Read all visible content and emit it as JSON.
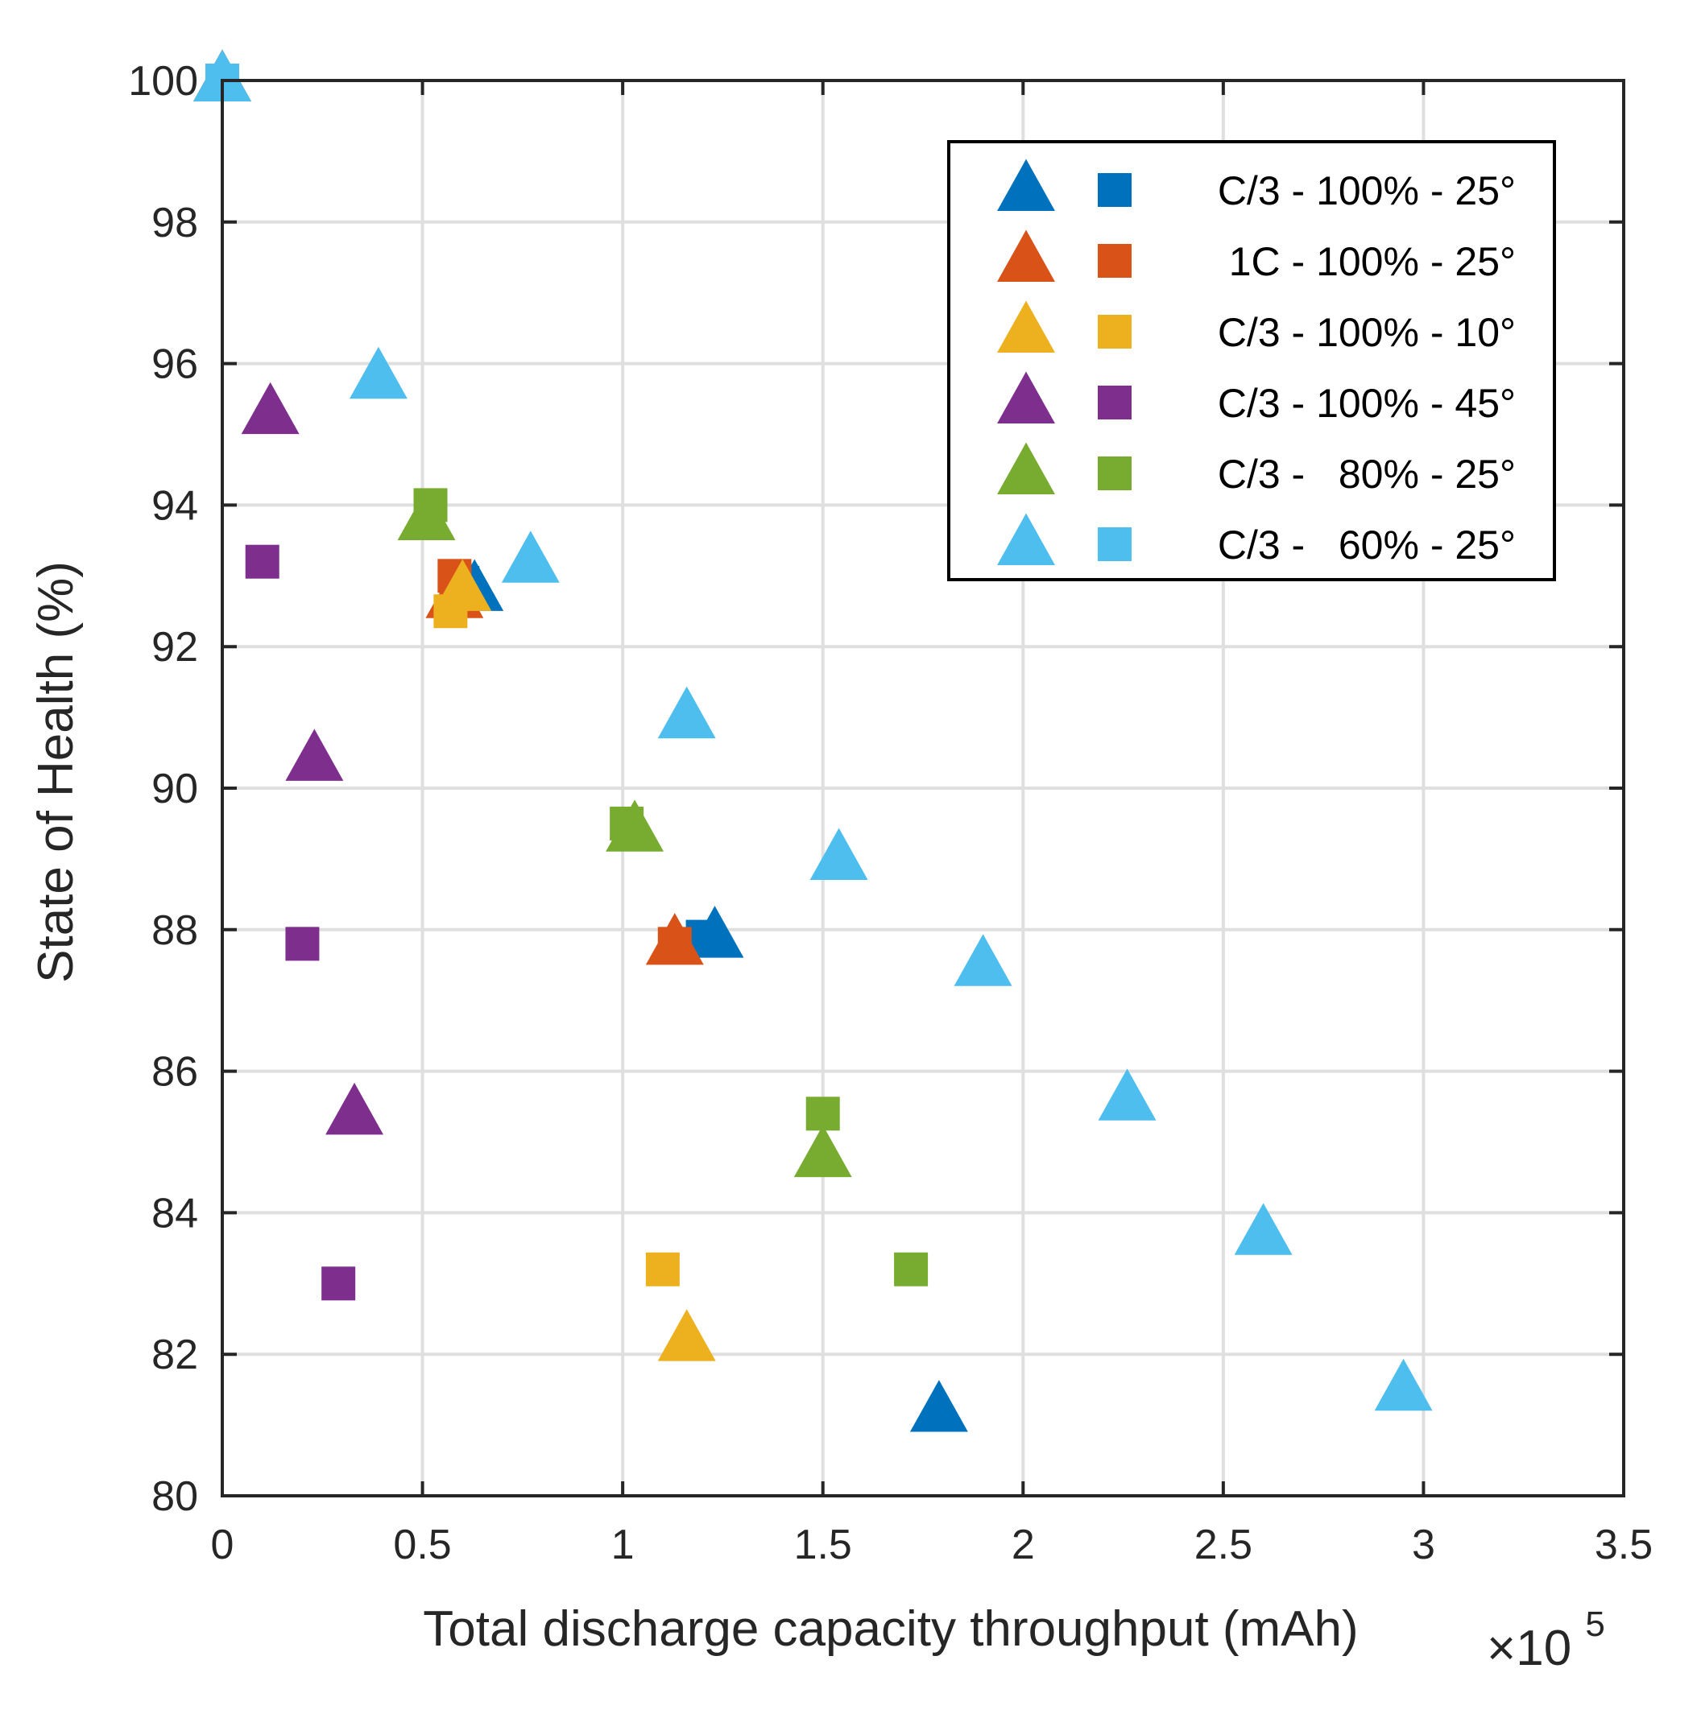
{
  "chart_data": {
    "type": "scatter",
    "xlabel": "Total discharge capacity throughput (mAh)",
    "ylabel": "State of Health (%)",
    "x_exponent_label": "×10",
    "x_exponent_power": "5",
    "xlim": [
      0,
      3.5
    ],
    "ylim": [
      80,
      100
    ],
    "x_ticks": [
      0,
      0.5,
      1,
      1.5,
      2,
      2.5,
      3,
      3.5
    ],
    "x_tick_labels": [
      "0",
      "0.5",
      "1",
      "1.5",
      "2",
      "2.5",
      "3",
      "3.5"
    ],
    "y_ticks": [
      80,
      82,
      84,
      86,
      88,
      90,
      92,
      94,
      96,
      98,
      100
    ],
    "y_tick_labels": [
      "80",
      "82",
      "84",
      "86",
      "88",
      "90",
      "92",
      "94",
      "96",
      "98",
      "100"
    ],
    "grid": true,
    "legend_position": "top-right",
    "series": [
      {
        "name": "C/3 - 100% - 25°",
        "color": "#0072BD",
        "triangles": [
          [
            0,
            100
          ],
          [
            0.63,
            92.8
          ],
          [
            1.23,
            87.9
          ],
          [
            1.79,
            81.2
          ]
        ],
        "squares": [
          [
            0,
            100
          ],
          [
            0.6,
            92.9
          ],
          [
            1.2,
            87.9
          ]
        ]
      },
      {
        "name": " 1C - 100% - 25°",
        "color": "#D95319",
        "triangles": [
          [
            0,
            100
          ],
          [
            0.58,
            92.7
          ],
          [
            1.13,
            87.8
          ]
        ],
        "squares": [
          [
            0,
            100
          ],
          [
            0.58,
            93.0
          ],
          [
            1.13,
            87.8
          ]
        ]
      },
      {
        "name": "C/3 - 100% - 10°",
        "color": "#EDB120",
        "triangles": [
          [
            0,
            100
          ],
          [
            0.6,
            92.8
          ],
          [
            1.16,
            82.2
          ]
        ],
        "squares": [
          [
            0,
            100
          ],
          [
            0.57,
            92.5
          ],
          [
            1.1,
            83.2
          ]
        ]
      },
      {
        "name": "C/3 - 100% - 45°",
        "color": "#7E2F8E",
        "triangles": [
          [
            0,
            100
          ],
          [
            0.12,
            95.3
          ],
          [
            0.23,
            90.4
          ],
          [
            0.33,
            85.4
          ]
        ],
        "squares": [
          [
            0,
            100
          ],
          [
            0.1,
            93.2
          ],
          [
            0.2,
            87.8
          ],
          [
            0.29,
            83.0
          ]
        ]
      },
      {
        "name": "C/3 -   80% - 25°",
        "color": "#77AC30",
        "triangles": [
          [
            0,
            100
          ],
          [
            0.51,
            93.8
          ],
          [
            1.03,
            89.4
          ],
          [
            1.5,
            84.8
          ]
        ],
        "squares": [
          [
            0,
            100
          ],
          [
            0.52,
            94.0
          ],
          [
            1.01,
            89.5
          ],
          [
            1.5,
            85.4
          ],
          [
            1.72,
            83.2
          ]
        ]
      },
      {
        "name": "C/3 -   60% - 25°",
        "color": "#4DBEEE",
        "triangles": [
          [
            0,
            100
          ],
          [
            0.39,
            95.8
          ],
          [
            0.77,
            93.2
          ],
          [
            1.16,
            91.0
          ],
          [
            1.54,
            89.0
          ],
          [
            1.9,
            87.5
          ],
          [
            2.26,
            85.6
          ],
          [
            2.6,
            83.7
          ],
          [
            2.95,
            81.5
          ]
        ],
        "squares": [
          [
            0,
            100
          ]
        ]
      }
    ]
  }
}
